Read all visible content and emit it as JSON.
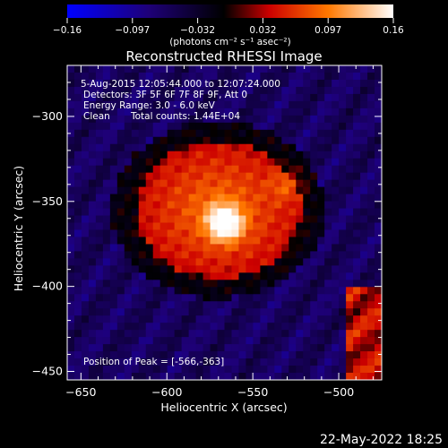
{
  "chart_data": {
    "type": "heatmap",
    "title": "Reconstructed RHESSI Image",
    "xlabel": "Heliocentric X (arcsec)",
    "ylabel": "Heliocentric Y (arcsec)",
    "xlim": [
      -658,
      -475
    ],
    "ylim": [
      -455,
      -270
    ],
    "x_ticks": [
      -650,
      -600,
      -550,
      -500
    ],
    "y_ticks": [
      -300,
      -350,
      -400,
      -450
    ],
    "colorbar": {
      "range": [
        -0.16,
        0.16
      ],
      "ticks": [
        "-0.16",
        "-0.097",
        "-0.032",
        "0.032",
        "0.097",
        "0.16"
      ],
      "unit_label": "(photons cm⁻² s⁻¹ asec⁻²)",
      "colors": [
        "#0000ff",
        "#1e0078",
        "#000000",
        "#cc0000",
        "#ff7800",
        "#ffffff"
      ]
    },
    "annotations": {
      "time_range": "5-Aug-2015 12:05:44.000 to 12:07:24.000",
      "detectors": "Detectors: 3F 5F 6F 7F 8F 9F, Att 0",
      "energy_range": "Energy Range: 3.0 - 6.0 keV",
      "clean_label": "Clean",
      "total_counts": "Total counts: 1.44E+04",
      "peak_position": "Position of Peak = [-566,-363]"
    },
    "peak": {
      "x": -566,
      "y": -363
    },
    "footer_date": "22-May-2022 18:25"
  }
}
